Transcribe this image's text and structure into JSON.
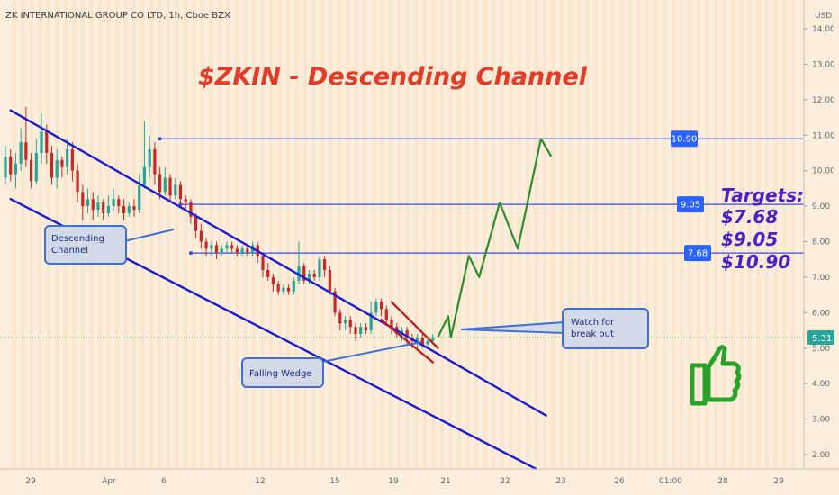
{
  "header": {
    "symbol_line": "ZK INTERNATIONAL GROUP CO LTD, 1h, Cboe BZX",
    "currency": "USD"
  },
  "colors": {
    "background": "#fbeedd",
    "candle_up": "#26a69a",
    "candle_down": "#c62828",
    "channel": "#1a1ad6",
    "wedge": "#c0151b",
    "projection": "#2e8b2e",
    "target_line": "#3b4fd8",
    "tag": "#2962ff",
    "title": "#e23c2b",
    "targets_text": "#4a22c8",
    "callout_border": "#3f6fd9",
    "callout_fill": "#d2dae8",
    "thumb": "#29a329"
  },
  "chart_data": {
    "type": "candlestick",
    "title": "$ZKIN - Descending Channel",
    "y_axis": {
      "unit": "USD",
      "ylim": [
        1.5,
        14.5
      ],
      "ticks": [
        "2.00",
        "3.00",
        "4.00",
        "5.00",
        "6.00",
        "7.00",
        "8.00",
        "9.00",
        "10.00",
        "11.00",
        "12.00",
        "13.00",
        "14.00"
      ]
    },
    "x_axis": {
      "ticks": [
        "29",
        "Apr",
        "6",
        "12",
        "15",
        "19",
        "21",
        "22",
        "23",
        "26",
        "01:00",
        "28",
        "29"
      ]
    },
    "last_price": "5.31",
    "candles": [
      [
        9.8,
        10.4,
        10.7,
        9.6
      ],
      [
        10.4,
        9.9,
        10.6,
        9.7
      ],
      [
        9.9,
        10.2,
        10.5,
        9.5
      ],
      [
        10.2,
        10.8,
        11.2,
        10.0
      ],
      [
        10.8,
        10.3,
        11.8,
        10.1
      ],
      [
        10.3,
        9.7,
        10.5,
        9.5
      ],
      [
        9.7,
        10.5,
        10.9,
        9.6
      ],
      [
        10.5,
        11.1,
        11.6,
        10.2
      ],
      [
        11.1,
        10.5,
        11.3,
        10.2
      ],
      [
        10.5,
        9.8,
        10.7,
        9.6
      ],
      [
        9.8,
        10.3,
        10.6,
        9.5
      ],
      [
        10.3,
        10.1,
        10.4,
        9.8
      ],
      [
        10.1,
        10.6,
        10.9,
        9.9
      ],
      [
        10.6,
        10.0,
        10.8,
        9.7
      ],
      [
        10.0,
        9.4,
        10.2,
        9.1
      ],
      [
        9.4,
        9.0,
        9.6,
        8.6
      ],
      [
        9.0,
        9.2,
        9.5,
        8.8
      ],
      [
        9.2,
        8.9,
        9.4,
        8.6
      ],
      [
        8.9,
        9.1,
        9.3,
        8.7
      ],
      [
        9.1,
        8.8,
        9.2,
        8.6
      ],
      [
        8.8,
        9.0,
        9.3,
        8.7
      ],
      [
        9.0,
        9.2,
        9.5,
        8.9
      ],
      [
        9.2,
        9.0,
        9.3,
        8.8
      ],
      [
        9.0,
        8.8,
        9.2,
        8.6
      ],
      [
        8.8,
        9.0,
        9.1,
        8.7
      ],
      [
        9.0,
        8.9,
        9.2,
        8.7
      ],
      [
        8.9,
        9.6,
        9.9,
        8.8
      ],
      [
        9.6,
        10.1,
        11.4,
        9.5
      ],
      [
        10.1,
        10.6,
        11.0,
        9.8
      ],
      [
        10.6,
        9.9,
        10.8,
        9.6
      ],
      [
        9.9,
        9.4,
        10.1,
        9.2
      ],
      [
        9.4,
        9.8,
        10.1,
        9.3
      ],
      [
        9.8,
        9.3,
        9.9,
        9.1
      ],
      [
        9.3,
        9.6,
        9.8,
        9.2
      ],
      [
        9.6,
        9.2,
        9.7,
        9.0
      ],
      [
        9.2,
        9.1,
        9.3,
        8.9
      ],
      [
        9.1,
        8.7,
        9.2,
        8.5
      ],
      [
        8.7,
        8.3,
        8.8,
        8.1
      ],
      [
        8.3,
        8.0,
        8.5,
        7.8
      ],
      [
        8.0,
        7.8,
        8.1,
        7.6
      ],
      [
        7.8,
        7.9,
        8.0,
        7.6
      ],
      [
        7.9,
        7.7,
        8.0,
        7.5
      ],
      [
        7.7,
        7.8,
        7.9,
        7.6
      ],
      [
        7.8,
        7.9,
        8.0,
        7.7
      ],
      [
        7.9,
        7.8,
        8.0,
        7.7
      ],
      [
        7.8,
        7.7,
        7.9,
        7.6
      ],
      [
        7.7,
        7.8,
        7.9,
        7.6
      ],
      [
        7.8,
        7.7,
        7.9,
        7.6
      ],
      [
        7.7,
        7.9,
        8.0,
        7.6
      ],
      [
        7.9,
        7.6,
        8.0,
        7.4
      ],
      [
        7.6,
        7.2,
        7.7,
        7.0
      ],
      [
        7.2,
        7.0,
        7.4,
        6.9
      ],
      [
        7.0,
        6.8,
        7.1,
        6.6
      ],
      [
        6.8,
        6.6,
        6.9,
        6.5
      ],
      [
        6.6,
        6.7,
        6.8,
        6.5
      ],
      [
        6.7,
        6.6,
        6.8,
        6.5
      ],
      [
        6.6,
        6.9,
        7.0,
        6.5
      ],
      [
        6.9,
        7.3,
        8.0,
        6.8
      ],
      [
        7.3,
        6.9,
        7.4,
        6.8
      ],
      [
        6.9,
        7.1,
        7.2,
        6.8
      ],
      [
        7.1,
        7.0,
        7.2,
        6.9
      ],
      [
        7.0,
        7.5,
        7.6,
        6.9
      ],
      [
        7.5,
        7.2,
        7.6,
        7.0
      ],
      [
        7.2,
        6.6,
        7.3,
        6.5
      ],
      [
        6.6,
        6.0,
        6.7,
        5.9
      ],
      [
        6.0,
        5.7,
        6.1,
        5.5
      ],
      [
        5.7,
        5.8,
        5.9,
        5.5
      ],
      [
        5.8,
        5.6,
        5.9,
        5.4
      ],
      [
        5.6,
        5.4,
        5.7,
        5.2
      ],
      [
        5.4,
        5.6,
        5.7,
        5.3
      ],
      [
        5.6,
        5.5,
        5.7,
        5.4
      ],
      [
        5.5,
        6.0,
        6.3,
        5.4
      ],
      [
        6.0,
        6.3,
        6.4,
        5.9
      ],
      [
        6.3,
        6.1,
        6.4,
        5.9
      ],
      [
        6.1,
        5.8,
        6.2,
        5.7
      ],
      [
        5.8,
        5.6,
        5.9,
        5.4
      ],
      [
        5.6,
        5.4,
        5.7,
        5.3
      ],
      [
        5.4,
        5.5,
        5.6,
        5.2
      ],
      [
        5.5,
        5.3,
        5.6,
        5.1
      ],
      [
        5.3,
        5.2,
        5.4,
        5.0
      ],
      [
        5.2,
        5.3,
        5.4,
        5.0
      ],
      [
        5.3,
        5.1,
        5.4,
        5.0
      ],
      [
        5.1,
        5.2,
        5.3,
        5.0
      ],
      [
        5.2,
        5.31,
        5.4,
        5.1
      ]
    ],
    "channel_upper": [
      [
        1.0,
        11.7
      ],
      [
        105.0,
        3.1
      ]
    ],
    "channel_lower": [
      [
        1.0,
        9.2
      ],
      [
        103.0,
        1.6
      ]
    ],
    "wedge_upper": [
      [
        75.0,
        6.3
      ],
      [
        84.0,
        5.0
      ]
    ],
    "wedge_lower": [
      [
        73.0,
        5.8
      ],
      [
        83.0,
        4.6
      ]
    ],
    "projection": [
      [
        84.0,
        5.31
      ],
      [
        86.0,
        5.9
      ],
      [
        86.5,
        5.3
      ],
      [
        90.0,
        7.6
      ],
      [
        92.0,
        7.0
      ],
      [
        96.0,
        9.1
      ],
      [
        99.5,
        7.8
      ],
      [
        104.0,
        10.9
      ],
      [
        106.0,
        10.4
      ]
    ],
    "targets": [
      {
        "value": 10.9,
        "label": "10.90",
        "line_from": 30
      },
      {
        "value": 9.05,
        "label": "9.05",
        "line_from": 34
      },
      {
        "value": 7.68,
        "label": "7.68",
        "line_from": 36
      }
    ],
    "annotations": {
      "targets_title": "Targets:",
      "target_values": [
        "$7.68",
        "$9.05",
        "$10.90"
      ],
      "descending_channel": [
        "Descending",
        "Channel"
      ],
      "falling_wedge": "Falling Wedge",
      "watch": [
        "Watch for",
        "break out"
      ]
    }
  }
}
